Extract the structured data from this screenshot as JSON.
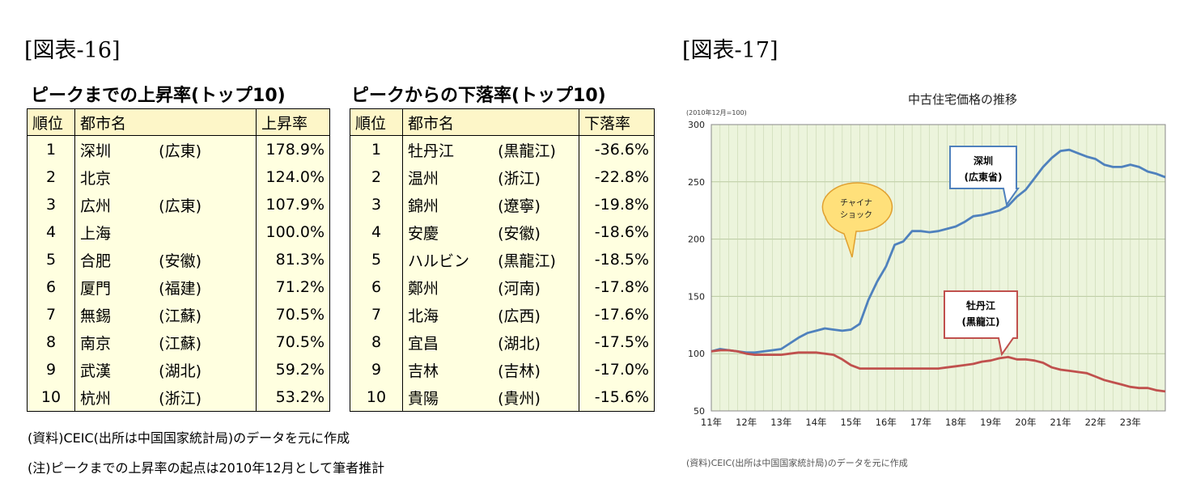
{
  "fig16_label": "[図表-16]",
  "fig17_label": "[図表-17]",
  "left_table": {
    "title": "ピークまでの上昇率(トップ10)",
    "headers": [
      "順位",
      "都市名",
      "上昇率"
    ],
    "rows": [
      {
        "rank": "1",
        "city": "深圳",
        "province": "(広東)",
        "value": "178.9%"
      },
      {
        "rank": "2",
        "city": "北京",
        "province": "",
        "value": "124.0%"
      },
      {
        "rank": "3",
        "city": "広州",
        "province": "(広東)",
        "value": "107.9%"
      },
      {
        "rank": "4",
        "city": "上海",
        "province": "",
        "value": "100.0%"
      },
      {
        "rank": "5",
        "city": "合肥",
        "province": "(安徽)",
        "value": "81.3%"
      },
      {
        "rank": "6",
        "city": "厦門",
        "province": "(福建)",
        "value": "71.2%"
      },
      {
        "rank": "7",
        "city": "無錫",
        "province": "(江蘇)",
        "value": "70.5%"
      },
      {
        "rank": "8",
        "city": "南京",
        "province": "(江蘇)",
        "value": "70.5%"
      },
      {
        "rank": "9",
        "city": "武漢",
        "province": "(湖北)",
        "value": "59.2%"
      },
      {
        "rank": "10",
        "city": "杭州",
        "province": "(浙江)",
        "value": "53.2%"
      }
    ]
  },
  "right_table": {
    "title": "ピークからの下落率(トップ10)",
    "headers": [
      "順位",
      "都市名",
      "下落率"
    ],
    "rows": [
      {
        "rank": "1",
        "city": "牡丹江",
        "province": "(黒龍江)",
        "value": "-36.6%"
      },
      {
        "rank": "2",
        "city": "温州",
        "province": "(浙江)",
        "value": "-22.8%"
      },
      {
        "rank": "3",
        "city": "錦州",
        "province": "(遼寧)",
        "value": "-19.8%"
      },
      {
        "rank": "4",
        "city": "安慶",
        "province": "(安徽)",
        "value": "-18.6%"
      },
      {
        "rank": "5",
        "city": "ハルビン",
        "province": "(黒龍江)",
        "value": "-18.5%"
      },
      {
        "rank": "6",
        "city": "鄭州",
        "province": "(河南)",
        "value": "-17.8%"
      },
      {
        "rank": "7",
        "city": "北海",
        "province": "(広西)",
        "value": "-17.6%"
      },
      {
        "rank": "8",
        "city": "宜昌",
        "province": "(湖北)",
        "value": "-17.5%"
      },
      {
        "rank": "9",
        "city": "吉林",
        "province": "(吉林)",
        "value": "-17.0%"
      },
      {
        "rank": "10",
        "city": "貴陽",
        "province": "(貴州)",
        "value": "-15.6%"
      }
    ]
  },
  "notes": {
    "source": "(資料)CEIC(出所は中国国家統計局)のデータを元に作成",
    "footnote": "(注)ピークまでの上昇率の起点は2010年12月として筆者推計"
  },
  "chart_data": {
    "type": "line",
    "title": "中古住宅価格の推移",
    "ylabel": "(2010年12月=100)",
    "ylim": [
      50,
      300
    ],
    "yticks": [
      50,
      100,
      150,
      200,
      250,
      300
    ],
    "xlim": [
      2011.0,
      2024.0
    ],
    "xtick_labels": [
      "11年",
      "12年",
      "13年",
      "14年",
      "15年",
      "16年",
      "17年",
      "18年",
      "19年",
      "20年",
      "21年",
      "22年",
      "23年"
    ],
    "grid": true,
    "source": "(資料)CEIC(出所は中国国家統計局)のデータを元に作成",
    "series": [
      {
        "name": "深圳 (広東省)",
        "color": "#4f81bd",
        "points": [
          [
            2011.0,
            102
          ],
          [
            2011.25,
            104
          ],
          [
            2011.5,
            103
          ],
          [
            2011.75,
            102
          ],
          [
            2012.0,
            101
          ],
          [
            2012.25,
            101
          ],
          [
            2012.5,
            102
          ],
          [
            2012.75,
            103
          ],
          [
            2013.0,
            104
          ],
          [
            2013.25,
            109
          ],
          [
            2013.5,
            114
          ],
          [
            2013.75,
            118
          ],
          [
            2014.0,
            120
          ],
          [
            2014.25,
            122
          ],
          [
            2014.5,
            121
          ],
          [
            2014.75,
            120
          ],
          [
            2015.0,
            121
          ],
          [
            2015.25,
            126
          ],
          [
            2015.5,
            147
          ],
          [
            2015.75,
            163
          ],
          [
            2016.0,
            176
          ],
          [
            2016.25,
            195
          ],
          [
            2016.5,
            198
          ],
          [
            2016.75,
            207
          ],
          [
            2017.0,
            207
          ],
          [
            2017.25,
            206
          ],
          [
            2017.5,
            207
          ],
          [
            2017.75,
            209
          ],
          [
            2018.0,
            211
          ],
          [
            2018.25,
            215
          ],
          [
            2018.5,
            220
          ],
          [
            2018.75,
            221
          ],
          [
            2019.0,
            223
          ],
          [
            2019.25,
            225
          ],
          [
            2019.5,
            229
          ],
          [
            2019.75,
            237
          ],
          [
            2020.0,
            243
          ],
          [
            2020.25,
            253
          ],
          [
            2020.5,
            263
          ],
          [
            2020.75,
            271
          ],
          [
            2021.0,
            277
          ],
          [
            2021.25,
            278
          ],
          [
            2021.5,
            275
          ],
          [
            2021.75,
            272
          ],
          [
            2022.0,
            270
          ],
          [
            2022.25,
            265
          ],
          [
            2022.5,
            263
          ],
          [
            2022.75,
            263
          ],
          [
            2023.0,
            265
          ],
          [
            2023.25,
            263
          ],
          [
            2023.5,
            259
          ],
          [
            2023.75,
            257
          ],
          [
            2024.0,
            254
          ]
        ],
        "callout": "深圳\n(広東省)"
      },
      {
        "name": "牡丹江 (黒龍江)",
        "color": "#c0504d",
        "points": [
          [
            2011.0,
            102
          ],
          [
            2011.25,
            103
          ],
          [
            2011.5,
            103
          ],
          [
            2011.75,
            102
          ],
          [
            2012.0,
            100
          ],
          [
            2012.25,
            99
          ],
          [
            2012.5,
            99
          ],
          [
            2012.75,
            99
          ],
          [
            2013.0,
            99
          ],
          [
            2013.25,
            100
          ],
          [
            2013.5,
            101
          ],
          [
            2013.75,
            101
          ],
          [
            2014.0,
            101
          ],
          [
            2014.25,
            100
          ],
          [
            2014.5,
            99
          ],
          [
            2014.75,
            95
          ],
          [
            2015.0,
            90
          ],
          [
            2015.25,
            87
          ],
          [
            2015.5,
            87
          ],
          [
            2015.75,
            87
          ],
          [
            2016.0,
            87
          ],
          [
            2016.25,
            87
          ],
          [
            2016.5,
            87
          ],
          [
            2016.75,
            87
          ],
          [
            2017.0,
            87
          ],
          [
            2017.25,
            87
          ],
          [
            2017.5,
            87
          ],
          [
            2017.75,
            88
          ],
          [
            2018.0,
            89
          ],
          [
            2018.25,
            90
          ],
          [
            2018.5,
            91
          ],
          [
            2018.75,
            93
          ],
          [
            2019.0,
            94
          ],
          [
            2019.25,
            96
          ],
          [
            2019.5,
            97
          ],
          [
            2019.75,
            95
          ],
          [
            2020.0,
            95
          ],
          [
            2020.25,
            94
          ],
          [
            2020.5,
            92
          ],
          [
            2020.75,
            88
          ],
          [
            2021.0,
            86
          ],
          [
            2021.25,
            85
          ],
          [
            2021.5,
            84
          ],
          [
            2021.75,
            83
          ],
          [
            2022.0,
            80
          ],
          [
            2022.25,
            77
          ],
          [
            2022.5,
            75
          ],
          [
            2022.75,
            73
          ],
          [
            2023.0,
            71
          ],
          [
            2023.25,
            70
          ],
          [
            2023.5,
            70
          ],
          [
            2023.75,
            68
          ],
          [
            2024.0,
            67
          ]
        ],
        "callout": "牡丹江\n(黒龍江)"
      }
    ],
    "annotation": "チャイナ\nショック"
  }
}
